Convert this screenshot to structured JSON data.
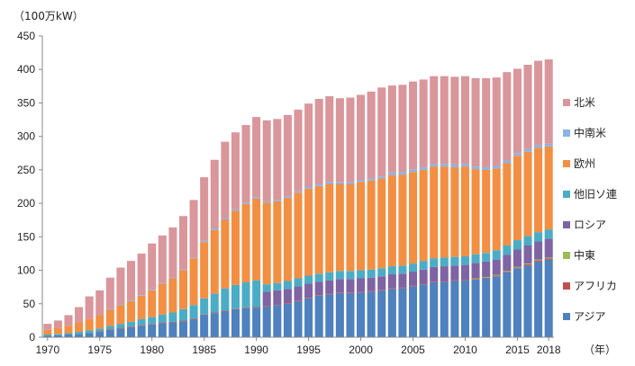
{
  "chart_data": {
    "type": "bar",
    "stacked": true,
    "ylabel": "（100万kW）",
    "xlabel": "（年）",
    "ylim": [
      0,
      450
    ],
    "yticks": [
      0,
      50,
      100,
      150,
      200,
      250,
      300,
      350,
      400,
      450
    ],
    "x_tick_labels": [
      "1970",
      "1975",
      "1980",
      "1985",
      "1990",
      "1995",
      "2000",
      "2005",
      "2010",
      "2015",
      "2018"
    ],
    "x_tick_years": [
      1970,
      1975,
      1980,
      1985,
      1990,
      1995,
      2000,
      2005,
      2010,
      2015,
      2018
    ],
    "grid": false,
    "legend_position": "right",
    "categories": [
      1970,
      1971,
      1972,
      1973,
      1974,
      1975,
      1976,
      1977,
      1978,
      1979,
      1980,
      1981,
      1982,
      1983,
      1984,
      1985,
      1986,
      1987,
      1988,
      1989,
      1990,
      1991,
      1992,
      1993,
      1994,
      1995,
      1996,
      1997,
      1998,
      1999,
      2000,
      2001,
      2002,
      2003,
      2004,
      2005,
      2006,
      2007,
      2008,
      2009,
      2010,
      2011,
      2012,
      2013,
      2014,
      2015,
      2016,
      2017,
      2018
    ],
    "series": [
      {
        "name": "アジア",
        "color": "#4e81bd",
        "values": [
          2,
          3,
          4,
          5,
          6,
          8,
          11,
          13,
          15,
          17,
          19,
          21,
          22,
          24,
          27,
          33,
          36,
          39,
          41,
          43,
          44,
          46,
          48,
          50,
          54,
          58,
          62,
          64,
          66,
          66,
          67,
          68,
          70,
          72,
          73,
          76,
          79,
          82,
          83,
          84,
          85,
          86,
          88,
          91,
          97,
          103,
          107,
          113,
          116
        ]
      },
      {
        "name": "アフリカ",
        "color": "#c0504d",
        "values": [
          0,
          0,
          0,
          0,
          0,
          1,
          1,
          1,
          1,
          1,
          1,
          1,
          1,
          1,
          1,
          1,
          1,
          1,
          1,
          1,
          1,
          1,
          1,
          1,
          1,
          1,
          1,
          1,
          1,
          1,
          1,
          1,
          1,
          1,
          1,
          1,
          1,
          1,
          1,
          1,
          1,
          1,
          1,
          1,
          1,
          1,
          2,
          2,
          2
        ]
      },
      {
        "name": "中東",
        "color": "#9bbb59",
        "values": [
          0,
          0,
          0,
          0,
          0,
          0,
          0,
          0,
          0,
          0,
          0,
          0,
          0,
          0,
          0,
          0,
          0,
          0,
          0,
          0,
          0,
          0,
          0,
          0,
          0,
          0,
          0,
          0,
          0,
          0,
          0,
          0,
          0,
          0,
          0,
          0,
          0,
          0,
          0,
          0,
          0,
          1,
          1,
          1,
          1,
          1,
          1,
          1,
          1
        ]
      },
      {
        "name": "ロシア",
        "color": "#7e64a2",
        "values": [
          0,
          0,
          0,
          0,
          0,
          0,
          0,
          0,
          0,
          0,
          0,
          0,
          0,
          0,
          0,
          0,
          0,
          0,
          0,
          0,
          0,
          21,
          21,
          21,
          21,
          21,
          20,
          20,
          20,
          20,
          20,
          20,
          20,
          21,
          21,
          21,
          21,
          22,
          22,
          22,
          22,
          23,
          23,
          23,
          24,
          26,
          27,
          27,
          28
        ]
      },
      {
        "name": "他旧ソ連",
        "color": "#4bacc6",
        "values": [
          2,
          2,
          2,
          3,
          4,
          4,
          5,
          6,
          7,
          9,
          10,
          12,
          14,
          17,
          20,
          24,
          28,
          33,
          36,
          38,
          40,
          11,
          11,
          12,
          12,
          12,
          12,
          12,
          12,
          12,
          12,
          12,
          12,
          12,
          12,
          12,
          13,
          13,
          13,
          13,
          13,
          13,
          13,
          14,
          14,
          14,
          14,
          14,
          14
        ]
      },
      {
        "name": "欧州",
        "color": "#f28f43",
        "values": [
          7,
          9,
          11,
          14,
          17,
          20,
          24,
          28,
          31,
          35,
          40,
          46,
          51,
          58,
          70,
          84,
          95,
          103,
          111,
          117,
          122,
          122,
          122,
          124,
          128,
          130,
          131,
          132,
          130,
          130,
          132,
          133,
          134,
          136,
          136,
          137,
          136,
          137,
          136,
          134,
          134,
          127,
          124,
          122,
          123,
          126,
          126,
          126,
          124
        ]
      },
      {
        "name": "中南米",
        "color": "#8db3e2",
        "values": [
          0,
          0,
          0,
          0,
          0,
          0,
          1,
          1,
          1,
          1,
          1,
          1,
          1,
          1,
          1,
          2,
          2,
          2,
          2,
          2,
          2,
          2,
          2,
          2,
          2,
          3,
          3,
          3,
          3,
          3,
          3,
          3,
          3,
          4,
          4,
          4,
          4,
          4,
          4,
          4,
          4,
          4,
          4,
          4,
          4,
          4,
          4,
          4,
          4
        ]
      },
      {
        "name": "北米",
        "color": "#d9969b",
        "values": [
          9,
          11,
          16,
          23,
          34,
          37,
          47,
          55,
          59,
          62,
          69,
          71,
          75,
          80,
          86,
          95,
          103,
          114,
          115,
          116,
          120,
          121,
          121,
          122,
          122,
          124,
          127,
          128,
          125,
          126,
          127,
          130,
          133,
          130,
          130,
          131,
          131,
          131,
          131,
          131,
          131,
          132,
          133,
          132,
          132,
          126,
          126,
          126,
          126
        ]
      }
    ]
  }
}
